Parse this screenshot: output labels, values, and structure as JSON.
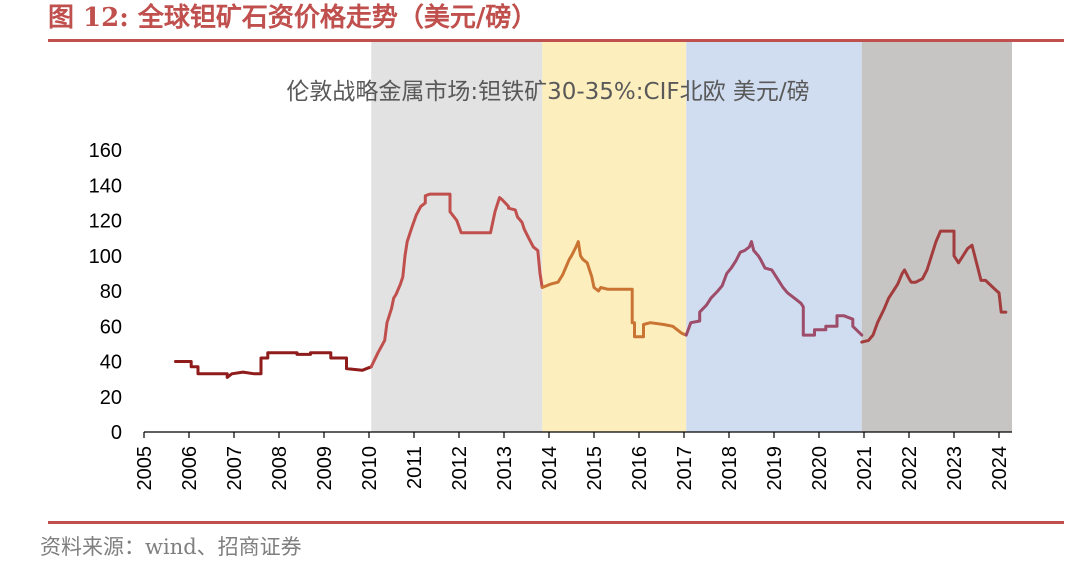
{
  "figure": {
    "label": "图 12:",
    "title": "全球钽矿石资价格走势（美元/磅）",
    "source": "资料来源：wind、招商证券"
  },
  "colors": {
    "accent": "#c0504d",
    "period_colors": [
      "#e2e2e2",
      "#fdeebe",
      "#d0dcef",
      "#c7c4c4"
    ],
    "series_colors": [
      "#8f1b1b",
      "#c0504d",
      "#ca7434",
      "#9d4c6a",
      "#a33d3d"
    ]
  },
  "chart_data": {
    "type": "line",
    "title": "伦敦战略金属市场:钽铁矿30-35%:CIF北欧 美元/磅",
    "xlabel": "",
    "ylabel": "",
    "xlim": [
      2005,
      2024
    ],
    "ylim": [
      0,
      160
    ],
    "yticks": [
      "0",
      "20",
      "40",
      "60",
      "80",
      "100",
      "120",
      "140",
      "160"
    ],
    "xticks": [
      "2005",
      "2006",
      "2007",
      "2008",
      "2009",
      "2010",
      "2011",
      "2012",
      "2013",
      "2014",
      "2015",
      "2016",
      "2017",
      "2018",
      "2019",
      "2020",
      "2021",
      "2022",
      "2023",
      "2024"
    ],
    "grid": false,
    "legend": "none",
    "shaded_periods": [
      {
        "x": [
          2010.05,
          2013.85
        ],
        "color": "#e2e2e2"
      },
      {
        "x": [
          2013.85,
          2017.05
        ],
        "color": "#fdeebe"
      },
      {
        "x": [
          2017.05,
          2020.95
        ],
        "color": "#d0dcef"
      },
      {
        "x": [
          2020.95,
          2024.35
        ],
        "color": "#c7c4c4"
      }
    ],
    "series": [
      {
        "color": "#8f1b1b",
        "x": [
          2005.7,
          2006.05,
          2006.05,
          2006.2,
          2006.2,
          2006.6,
          2006.85,
          2006.85,
          2006.95,
          2006.95,
          2007.2,
          2007.2,
          2007.45,
          2007.6,
          2007.6,
          2007.75,
          2007.75,
          2008.4,
          2008.4,
          2008.7,
          2008.7,
          2009.15,
          2009.15,
          2009.5,
          2009.5,
          2009.85,
          2010.05
        ],
        "y": [
          40,
          40,
          37,
          37,
          33,
          33,
          33,
          31,
          33,
          33,
          34,
          34,
          33,
          33,
          42,
          42,
          45,
          45,
          44,
          44,
          45,
          45,
          42,
          42,
          36,
          35,
          37
        ]
      },
      {
        "color": "#c0504d",
        "x": [
          2010.05,
          2010.2,
          2010.35,
          2010.4,
          2010.5,
          2010.55,
          2010.6,
          2010.7,
          2010.75,
          2010.8,
          2010.85,
          2010.95,
          2011.05,
          2011.15,
          2011.25,
          2011.25,
          2011.35,
          2011.45,
          2011.45,
          2011.8,
          2011.8,
          2011.95,
          2012.05,
          2012.05,
          2012.7,
          2012.8,
          2012.9,
          2012.95,
          2013.1,
          2013.1,
          2013.25,
          2013.3,
          2013.4,
          2013.45,
          2013.55,
          2013.65,
          2013.75,
          2013.8,
          2013.85
        ],
        "y": [
          37,
          45,
          52,
          62,
          70,
          76,
          78,
          84,
          88,
          100,
          108,
          116,
          123,
          128,
          130,
          134,
          135,
          135,
          135,
          135,
          125,
          120,
          113,
          113,
          113,
          125,
          133,
          132,
          128,
          127,
          126,
          122,
          119,
          115,
          110,
          105,
          103,
          90,
          82
        ]
      },
      {
        "color": "#ca7434",
        "x": [
          2013.85,
          2014.05,
          2014.2,
          2014.3,
          2014.4,
          2014.45,
          2014.5,
          2014.6,
          2014.65,
          2014.7,
          2014.75,
          2014.85,
          2014.95,
          2015.0,
          2015.1,
          2015.15,
          2015.3,
          2015.5,
          2015.85,
          2015.85,
          2015.9,
          2015.9,
          2016.1,
          2016.1,
          2016.25,
          2016.55,
          2016.75,
          2016.95,
          2017.05
        ],
        "y": [
          82,
          84,
          85,
          89,
          95,
          98,
          100,
          105,
          108,
          100,
          98,
          96,
          88,
          82,
          80,
          82,
          81,
          81,
          81,
          62,
          62,
          54,
          54,
          61,
          62,
          61,
          60,
          56,
          55
        ]
      },
      {
        "color": "#9d4c6a",
        "x": [
          2017.05,
          2017.15,
          2017.35,
          2017.35,
          2017.5,
          2017.6,
          2017.75,
          2017.85,
          2017.95,
          2018.05,
          2018.15,
          2018.25,
          2018.35,
          2018.45,
          2018.5,
          2018.55,
          2018.65,
          2018.7,
          2018.8,
          2018.95,
          2019.1,
          2019.2,
          2019.3,
          2019.45,
          2019.6,
          2019.65,
          2019.65,
          2019.9,
          2019.9,
          2020.15,
          2020.15,
          2020.4,
          2020.4,
          2020.55,
          2020.75,
          2020.75,
          2020.95
        ],
        "y": [
          55,
          62,
          63,
          68,
          72,
          76,
          80,
          83,
          90,
          93,
          97,
          102,
          103,
          105,
          108,
          103,
          100,
          98,
          93,
          92,
          86,
          82,
          79,
          76,
          73,
          71,
          55,
          55,
          58,
          58,
          60,
          60,
          66,
          66,
          64,
          60,
          55
        ]
      },
      {
        "color": "#a33d3d",
        "x": [
          2020.95,
          2021.1,
          2021.2,
          2021.3,
          2021.45,
          2021.55,
          2021.65,
          2021.75,
          2021.85,
          2021.9,
          2022.0,
          2022.05,
          2022.15,
          2022.3,
          2022.4,
          2022.5,
          2022.6,
          2022.7,
          2022.8,
          2022.9,
          2023.0,
          2023.0,
          2023.1,
          2023.2,
          2023.3,
          2023.4,
          2023.5,
          2023.6,
          2023.7,
          2023.95,
          2024.0,
          2024.05,
          2024.15
        ],
        "y": [
          51,
          52,
          55,
          62,
          70,
          76,
          80,
          84,
          90,
          92,
          87,
          85,
          85,
          87,
          92,
          100,
          108,
          114,
          114,
          114,
          114,
          100,
          96,
          100,
          104,
          106,
          96,
          86,
          86,
          80,
          79,
          68,
          68
        ]
      }
    ]
  }
}
